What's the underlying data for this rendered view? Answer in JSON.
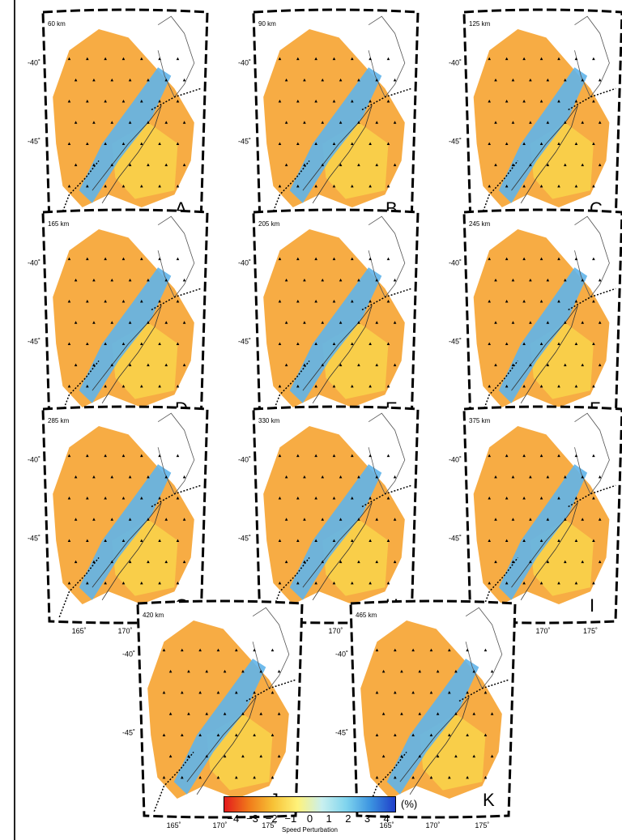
{
  "lon_ticks": [
    "165˚",
    "170˚",
    "175˚"
  ],
  "lat_ticks": [
    "-40˚",
    "-45˚"
  ],
  "panels": [
    {
      "letter": "A",
      "depth": "60 km"
    },
    {
      "letter": "B",
      "depth": "90 km"
    },
    {
      "letter": "C",
      "depth": "125 km"
    },
    {
      "letter": "D",
      "depth": "165 km"
    },
    {
      "letter": "E",
      "depth": "205 km"
    },
    {
      "letter": "F",
      "depth": "245 km"
    },
    {
      "letter": "G",
      "depth": "285 km"
    },
    {
      "letter": "H",
      "depth": "330 km"
    },
    {
      "letter": "I",
      "depth": "375 km"
    },
    {
      "letter": "J",
      "depth": "420 km"
    },
    {
      "letter": "K",
      "depth": "465 km"
    }
  ],
  "colorbar": {
    "ticks": [
      "−4",
      "−3",
      "−2",
      "−1",
      "0",
      "1",
      "2",
      "3",
      "4"
    ],
    "min": -4.5,
    "max": 4.5,
    "unit": "(%)",
    "label": "Speed Perturbation",
    "colors": [
      "#e31a1c",
      "#f07a1a",
      "#f7c236",
      "#fff27a",
      "#c9f0ef",
      "#7fd4ee",
      "#3b93e0",
      "#1f3ec9"
    ]
  }
}
